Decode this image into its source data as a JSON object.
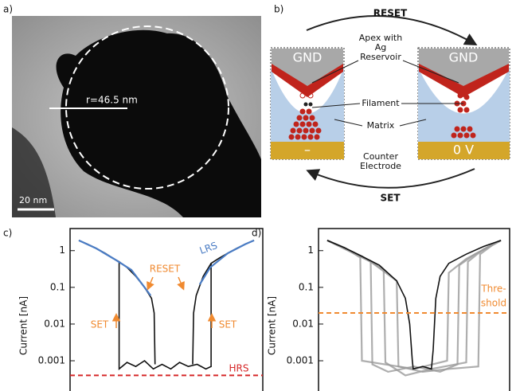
{
  "panel_a": {
    "label": "a)",
    "radius": "r=46.5 nm",
    "scale_bar": "20 nm"
  },
  "panel_b": {
    "label": "b)",
    "top_arrow": "RESET",
    "bottom_arrow": "SET",
    "left_top": "GND",
    "right_top": "GND",
    "left_bias": "–",
    "right_bias": "0 V",
    "apex": [
      "Apex with",
      "Ag",
      "Reservoir"
    ],
    "filament": "Filament",
    "matrix": "Matrix",
    "counter": [
      "Counter",
      "Electrode"
    ]
  },
  "chart_data": [
    {
      "type": "line",
      "panel": "c)",
      "ylabel": "Current [nA]",
      "log_y": true,
      "xlim": [
        -1.1,
        1.1
      ],
      "ylim": [
        0.00015,
        4
      ],
      "yticks": [
        1,
        0.1,
        0.01,
        0.001
      ],
      "series": [
        {
          "color": "#111111",
          "x": [
            -1,
            -0.9,
            -0.8,
            -0.7,
            -0.6,
            -0.54,
            -0.54,
            -0.45,
            -0.35,
            -0.25,
            -0.15,
            -0.05,
            0.05,
            0.15,
            0.25,
            0.35,
            0.45,
            0.51,
            0.51,
            0.6,
            0.7,
            0.8,
            0.9,
            1
          ],
          "values": [
            1.9,
            1.5,
            1.15,
            0.85,
            0.6,
            0.5,
            0.0006,
            0.0009,
            0.0007,
            0.001,
            0.0006,
            0.0008,
            0.0006,
            0.0009,
            0.0007,
            0.0008,
            0.0006,
            0.0007,
            0.45,
            0.62,
            0.85,
            1.15,
            1.5,
            1.9
          ]
        },
        {
          "color": "#111111",
          "x": [
            -0.54,
            -0.45,
            -0.35,
            -0.25,
            -0.17,
            -0.14,
            -0.13,
            0,
            0.3,
            0.31,
            0.34,
            0.42,
            0.51
          ],
          "values": [
            0.5,
            0.35,
            0.2,
            0.1,
            0.05,
            0.02,
            0.0008,
            null,
            0.0008,
            0.02,
            0.06,
            0.2,
            0.45
          ]
        },
        {
          "color": "#4a7cc4",
          "x": [
            -1,
            -0.8,
            -0.6,
            -0.4,
            -0.25,
            -0.18,
            0,
            0.38,
            0.5,
            0.7,
            0.9,
            1
          ],
          "values": [
            1.9,
            1.15,
            0.6,
            0.3,
            0.1,
            0.06,
            null,
            0.12,
            0.35,
            0.85,
            1.5,
            1.9
          ]
        }
      ],
      "hlines": [
        {
          "value": 0.0004,
          "color": "#d62728",
          "label": [
            "HRS"
          ]
        }
      ],
      "annotations": [
        {
          "text": "LRS",
          "color": "#4a7cc4"
        },
        {
          "text": "RESET",
          "color": "#f08a30"
        },
        {
          "text": "SET",
          "color": "#f08a30"
        },
        {
          "text": "SET",
          "color": "#f08a30"
        }
      ]
    },
    {
      "type": "line",
      "panel": "d)",
      "ylabel": "Current [nA]",
      "log_y": true,
      "xlim": [
        -1.1,
        1.1
      ],
      "ylim": [
        0.00015,
        4
      ],
      "yticks": [
        1,
        0.1,
        0.01,
        0.001
      ],
      "series": [
        {
          "color": "#9a9a9a",
          "x": [
            -1,
            -0.7,
            -0.5,
            -0.48,
            -0.3,
            0,
            0.3,
            0.5,
            0.52,
            0.7,
            1
          ],
          "values": [
            1.9,
            0.9,
            0.5,
            0.0008,
            0.0005,
            0.0007,
            0.0005,
            0.0008,
            0.4,
            0.8,
            1.9
          ]
        },
        {
          "color": "#9a9a9a",
          "x": [
            -1,
            -0.6,
            -0.35,
            -0.33,
            -0.1,
            0.2,
            0.6,
            0.62,
            0.8,
            1
          ],
          "values": [
            1.9,
            0.7,
            0.3,
            0.0009,
            0.0004,
            0.0006,
            0.0009,
            0.5,
            1.1,
            1.9
          ]
        },
        {
          "color": "#9a9a9a",
          "x": [
            -1,
            -0.5,
            -0.2,
            -0.18,
            0.1,
            0.4,
            0.74,
            0.76,
            0.9,
            1
          ],
          "values": [
            1.9,
            0.5,
            0.15,
            0.0007,
            0.0005,
            0.0006,
            0.0007,
            0.8,
            1.4,
            1.9
          ]
        },
        {
          "color": "#9a9a9a",
          "x": [
            -1,
            -0.8,
            -0.62,
            -0.6,
            0,
            0.38,
            0.4,
            0.6,
            1
          ],
          "values": [
            1.9,
            1.2,
            0.65,
            0.001,
            0.0006,
            0.001,
            0.25,
            0.6,
            1.9
          ]
        },
        {
          "color": "#111111",
          "x": [
            -1,
            -0.8,
            -0.6,
            -0.4,
            -0.2,
            -0.1,
            -0.05,
            -0.02,
            -0.01,
            0.1,
            0.2,
            0.22,
            0.25,
            0.3,
            0.4,
            0.6,
            0.8,
            1
          ],
          "values": [
            1.9,
            1.2,
            0.7,
            0.4,
            0.15,
            0.05,
            0.01,
            0.001,
            0.0006,
            0.0007,
            0.0006,
            0.002,
            0.05,
            0.2,
            0.45,
            0.8,
            1.3,
            1.9
          ]
        }
      ],
      "hlines": [
        {
          "value": 0.02,
          "color": "#f08a30",
          "label": [
            "Thre-",
            "shold"
          ]
        }
      ],
      "annotations": []
    }
  ]
}
